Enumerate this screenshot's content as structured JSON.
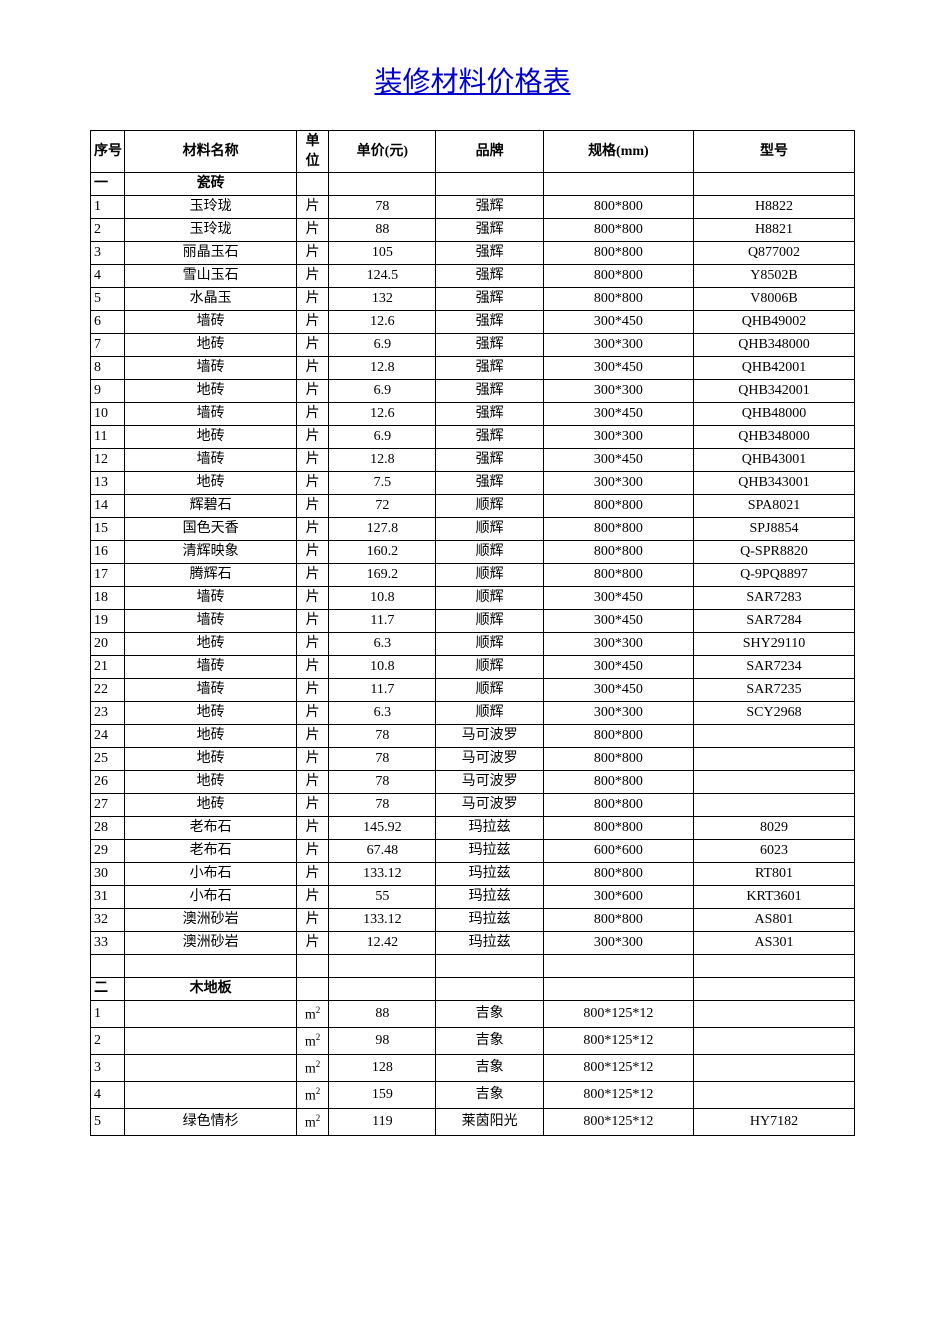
{
  "title": "装修材料价格表",
  "columns": [
    "序号",
    "材料名称",
    "单位",
    "单价(元)",
    "品牌",
    "规格(mm)",
    "型号"
  ],
  "unit_header_line1": "单",
  "unit_header_line2": "位",
  "sections": [
    {
      "seq": "一",
      "name": "瓷砖",
      "rows": [
        {
          "seq": "1",
          "name": "玉玲珑",
          "unit": "片",
          "price": "78",
          "brand": "强辉",
          "spec": "800*800",
          "model": "H8822"
        },
        {
          "seq": "2",
          "name": "玉玲珑",
          "unit": "片",
          "price": "88",
          "brand": "强辉",
          "spec": "800*800",
          "model": "H8821"
        },
        {
          "seq": "3",
          "name": "丽晶玉石",
          "unit": "片",
          "price": "105",
          "brand": "强辉",
          "spec": "800*800",
          "model": "Q877002"
        },
        {
          "seq": "4",
          "name": "雪山玉石",
          "unit": "片",
          "price": "124.5",
          "brand": "强辉",
          "spec": "800*800",
          "model": "Y8502B"
        },
        {
          "seq": "5",
          "name": "水晶玉",
          "unit": "片",
          "price": "132",
          "brand": "强辉",
          "spec": "800*800",
          "model": "V8006B"
        },
        {
          "seq": "6",
          "name": "墙砖",
          "unit": "片",
          "price": "12.6",
          "brand": "强辉",
          "spec": "300*450",
          "model": "QHB49002"
        },
        {
          "seq": "7",
          "name": "地砖",
          "unit": "片",
          "price": "6.9",
          "brand": "强辉",
          "spec": "300*300",
          "model": "QHB348000"
        },
        {
          "seq": "8",
          "name": "墙砖",
          "unit": "片",
          "price": "12.8",
          "brand": "强辉",
          "spec": "300*450",
          "model": "QHB42001"
        },
        {
          "seq": "9",
          "name": "地砖",
          "unit": "片",
          "price": "6.9",
          "brand": "强辉",
          "spec": "300*300",
          "model": "QHB342001"
        },
        {
          "seq": "10",
          "name": "墙砖",
          "unit": "片",
          "price": "12.6",
          "brand": "强辉",
          "spec": "300*450",
          "model": "QHB48000"
        },
        {
          "seq": "11",
          "name": "地砖",
          "unit": "片",
          "price": "6.9",
          "brand": "强辉",
          "spec": "300*300",
          "model": "QHB348000"
        },
        {
          "seq": "12",
          "name": "墙砖",
          "unit": "片",
          "price": "12.8",
          "brand": "强辉",
          "spec": "300*450",
          "model": "QHB43001"
        },
        {
          "seq": "13",
          "name": "地砖",
          "unit": "片",
          "price": "7.5",
          "brand": "强辉",
          "spec": "300*300",
          "model": "QHB343001"
        },
        {
          "seq": "14",
          "name": "辉碧石",
          "unit": "片",
          "price": "72",
          "brand": "顺辉",
          "spec": "800*800",
          "model": "SPA8021"
        },
        {
          "seq": "15",
          "name": "国色天香",
          "unit": "片",
          "price": "127.8",
          "brand": "顺辉",
          "spec": "800*800",
          "model": "SPJ8854"
        },
        {
          "seq": "16",
          "name": "清辉映象",
          "unit": "片",
          "price": "160.2",
          "brand": "顺辉",
          "spec": "800*800",
          "model": "Q-SPR8820"
        },
        {
          "seq": "17",
          "name": "腾辉石",
          "unit": "片",
          "price": "169.2",
          "brand": "顺辉",
          "spec": "800*800",
          "model": "Q-9PQ8897"
        },
        {
          "seq": "18",
          "name": "墙砖",
          "unit": "片",
          "price": "10.8",
          "brand": "顺辉",
          "spec": "300*450",
          "model": "SAR7283"
        },
        {
          "seq": "19",
          "name": "墙砖",
          "unit": "片",
          "price": "11.7",
          "brand": "顺辉",
          "spec": "300*450",
          "model": "SAR7284"
        },
        {
          "seq": "20",
          "name": "地砖",
          "unit": "片",
          "price": "6.3",
          "brand": "顺辉",
          "spec": "300*300",
          "model": "SHY29110"
        },
        {
          "seq": "21",
          "name": "墙砖",
          "unit": "片",
          "price": "10.8",
          "brand": "顺辉",
          "spec": "300*450",
          "model": "SAR7234"
        },
        {
          "seq": "22",
          "name": "墙砖",
          "unit": "片",
          "price": "11.7",
          "brand": "顺辉",
          "spec": "300*450",
          "model": "SAR7235"
        },
        {
          "seq": "23",
          "name": "地砖",
          "unit": "片",
          "price": "6.3",
          "brand": "顺辉",
          "spec": "300*300",
          "model": "SCY2968"
        },
        {
          "seq": "24",
          "name": "地砖",
          "unit": "片",
          "price": "78",
          "brand": "马可波罗",
          "spec": "800*800",
          "model": ""
        },
        {
          "seq": "25",
          "name": "地砖",
          "unit": "片",
          "price": "78",
          "brand": "马可波罗",
          "spec": "800*800",
          "model": ""
        },
        {
          "seq": "26",
          "name": "地砖",
          "unit": "片",
          "price": "78",
          "brand": "马可波罗",
          "spec": "800*800",
          "model": ""
        },
        {
          "seq": "27",
          "name": "地砖",
          "unit": "片",
          "price": "78",
          "brand": "马可波罗",
          "spec": "800*800",
          "model": ""
        },
        {
          "seq": "28",
          "name": "老布石",
          "unit": "片",
          "price": "145.92",
          "brand": "玛拉兹",
          "spec": "800*800",
          "model": "8029"
        },
        {
          "seq": "29",
          "name": "老布石",
          "unit": "片",
          "price": "67.48",
          "brand": "玛拉兹",
          "spec": "600*600",
          "model": "6023"
        },
        {
          "seq": "30",
          "name": "小布石",
          "unit": "片",
          "price": "133.12",
          "brand": "玛拉兹",
          "spec": "800*800",
          "model": "RT801"
        },
        {
          "seq": "31",
          "name": "小布石",
          "unit": "片",
          "price": "55",
          "brand": "玛拉兹",
          "spec": "300*600",
          "model": "KRT3601"
        },
        {
          "seq": "32",
          "name": "澳洲砂岩",
          "unit": "片",
          "price": "133.12",
          "brand": "玛拉兹",
          "spec": "800*800",
          "model": "AS801"
        },
        {
          "seq": "33",
          "name": "澳洲砂岩",
          "unit": "片",
          "price": "12.42",
          "brand": "玛拉兹",
          "spec": "300*300",
          "model": "AS301"
        }
      ]
    },
    {
      "seq": "二",
      "name": "木地板",
      "rows": [
        {
          "seq": "1",
          "name": "",
          "unit": "m²",
          "price": "88",
          "brand": "吉象",
          "spec": "800*125*12",
          "model": "",
          "tall": true
        },
        {
          "seq": "2",
          "name": "",
          "unit": "m²",
          "price": "98",
          "brand": "吉象",
          "spec": "800*125*12",
          "model": "",
          "tall": true
        },
        {
          "seq": "3",
          "name": "",
          "unit": "m²",
          "price": "128",
          "brand": "吉象",
          "spec": "800*125*12",
          "model": "",
          "tall": true
        },
        {
          "seq": "4",
          "name": "",
          "unit": "m²",
          "price": "159",
          "brand": "吉象",
          "spec": "800*125*12",
          "model": "",
          "tall": true
        },
        {
          "seq": "5",
          "name": "绿色情杉",
          "unit": "m²",
          "price": "119",
          "brand": "莱茵阳光",
          "spec": "800*125*12",
          "model": "HY7182",
          "tall": true
        }
      ]
    }
  ]
}
